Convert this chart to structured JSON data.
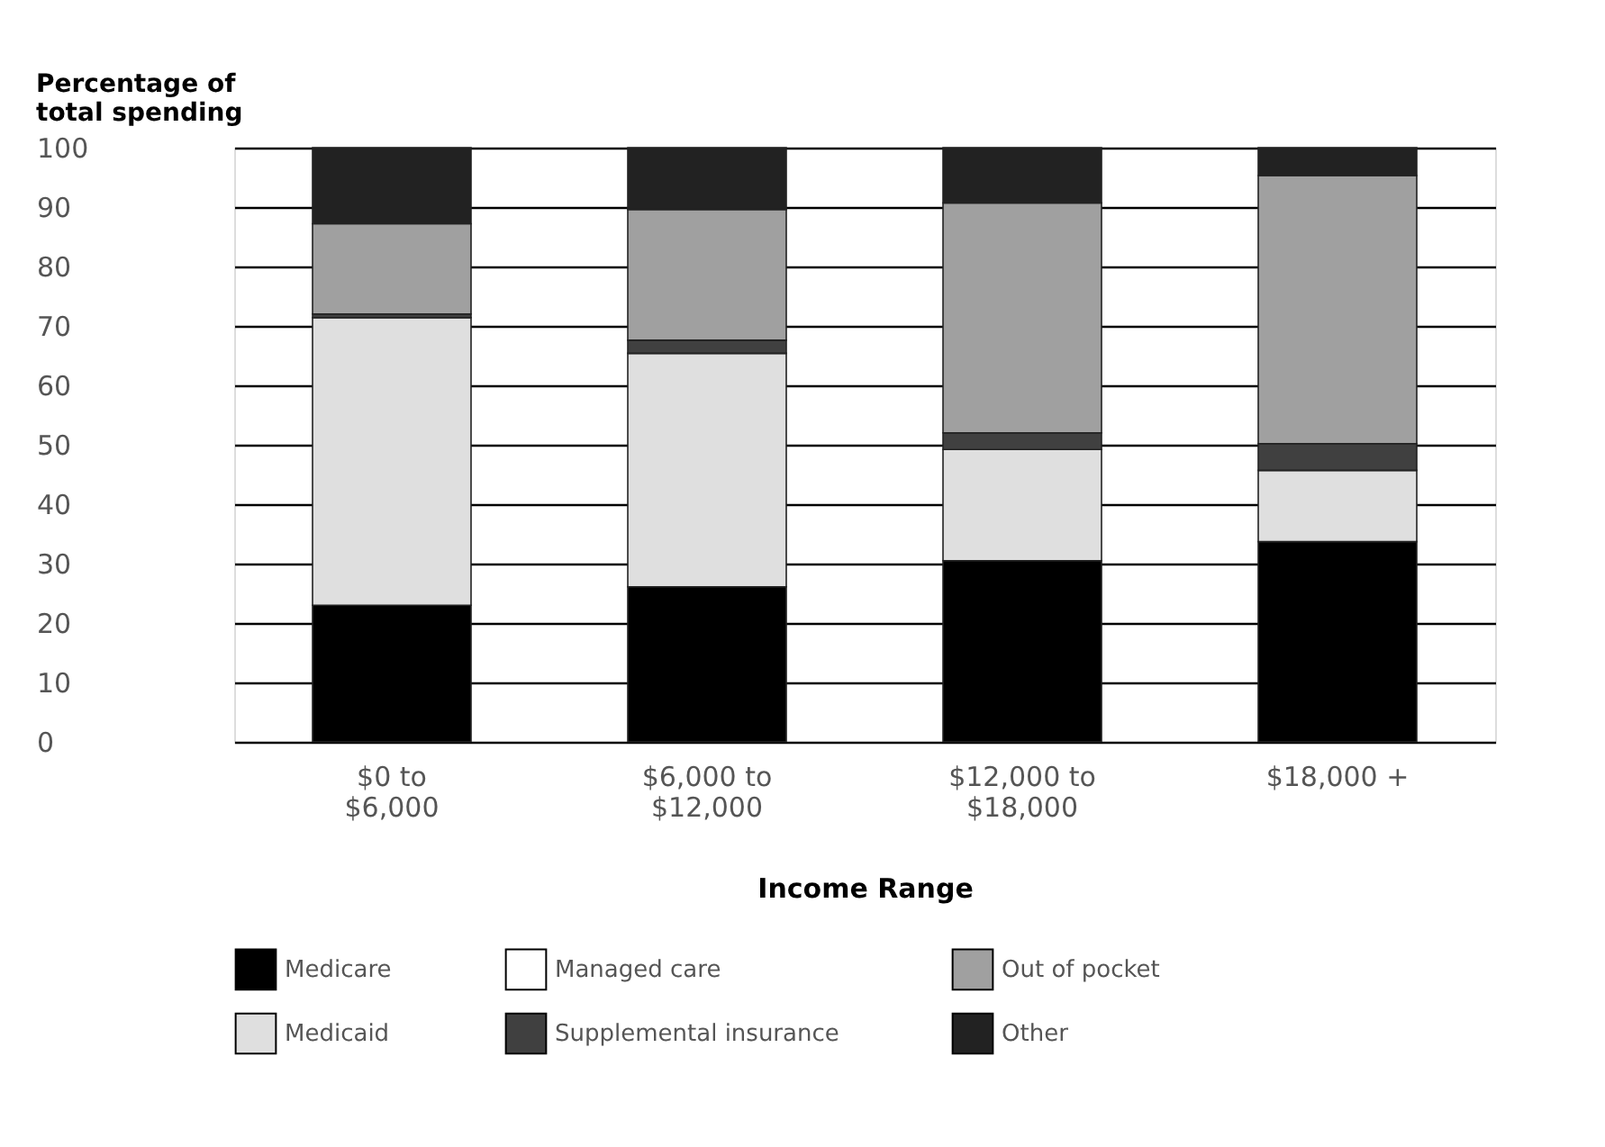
{
  "chart_data": {
    "type": "bar",
    "stacked": true,
    "ylabel": "Percentage of\ntotal spending",
    "xlabel": "Income Range",
    "categories": [
      "$0 to\n$6,000",
      "$6,000 to\n$12,000",
      "$12,000 to\n$18,000",
      "$18,000  +"
    ],
    "series": [
      {
        "name": "Medicare",
        "color": "#000000",
        "values": [
          23,
          26.1,
          30.5,
          33.7
        ]
      },
      {
        "name": "Medicaid",
        "color": "#dfdfdf",
        "values": [
          48.4,
          39.3,
          18.7,
          12.0
        ]
      },
      {
        "name": "Managed care",
        "color": "#ffffff",
        "values": [
          0,
          0,
          0,
          0
        ]
      },
      {
        "name": "Supplemental insurance",
        "color": "#404040",
        "values": [
          0.6,
          2.2,
          2.8,
          4.5
        ]
      },
      {
        "name": "Out of pocket",
        "color": "#a0a0a0",
        "values": [
          15.2,
          22.0,
          38.7,
          45.1
        ]
      },
      {
        "name": "Other",
        "color": "#222222",
        "values": [
          12.8,
          10.4,
          9.3,
          4.7
        ]
      }
    ],
    "ylim": [
      0,
      100
    ],
    "yticks": [
      0,
      10,
      20,
      30,
      40,
      50,
      60,
      70,
      80,
      90,
      100
    ],
    "grid": "y",
    "legend": "bottom"
  }
}
